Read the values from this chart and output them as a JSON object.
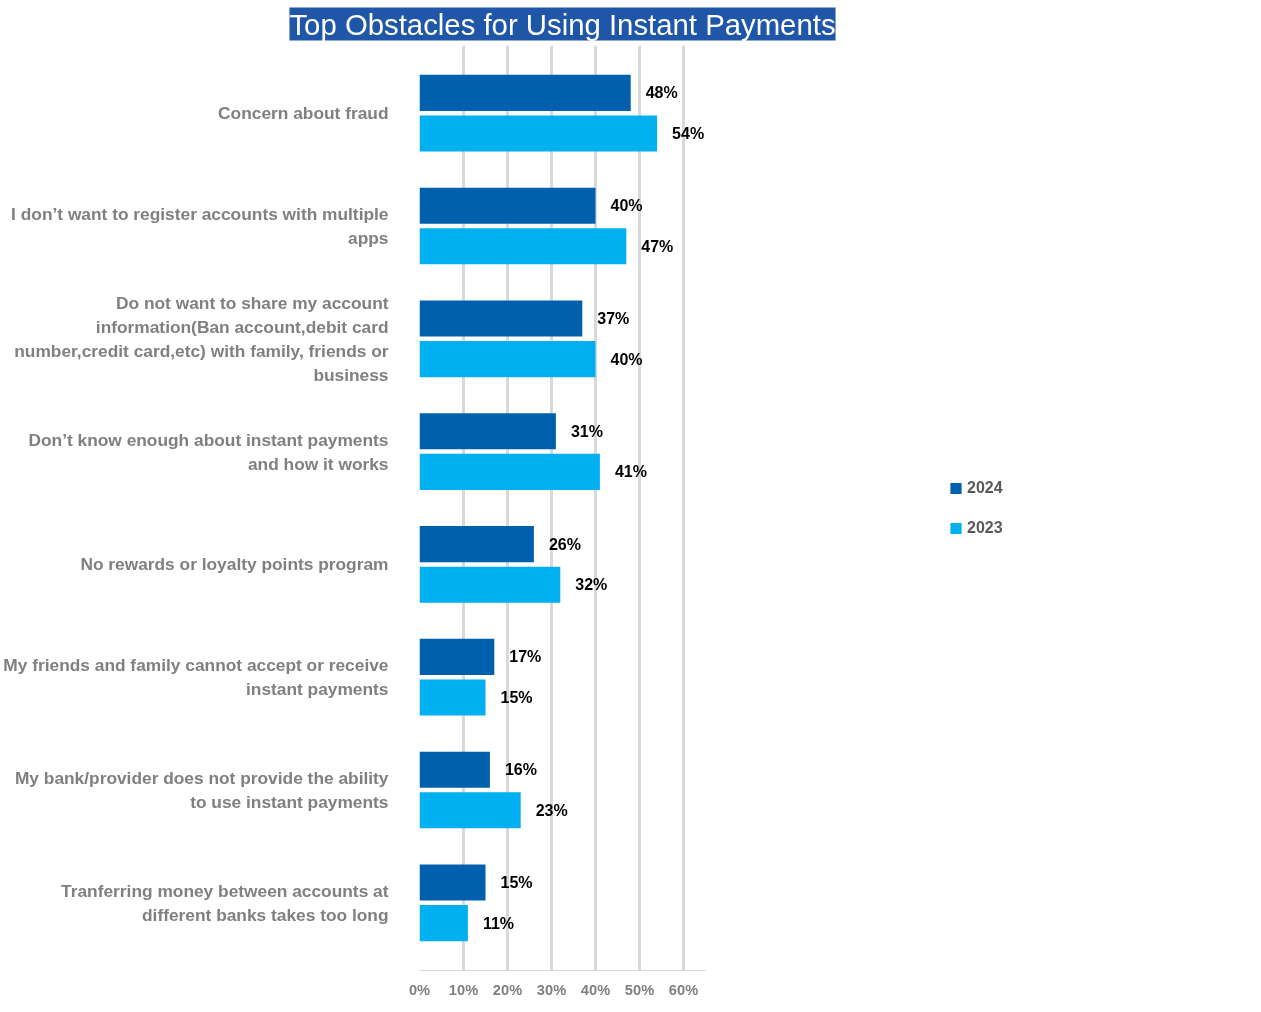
{
  "chart_data": {
    "type": "bar",
    "orientation": "horizontal",
    "title": "Top Obstacles for Using Instant Payments",
    "categories": [
      "Concern about fraud",
      "I don’t want to register accounts with multiple\napps",
      "Do not want to share my account\ninformation(Ban account,debit card\nnumber,credit card,etc) with family, friends or\nbusiness",
      "Don’t know enough about instant payments\nand how it works",
      "No rewards or loyalty points program",
      "My friends and family cannot accept or receive\ninstant payments",
      "My bank/provider does not provide the ability\nto use instant payments",
      "Tranferring money between accounts at\ndifferent banks takes too long"
    ],
    "series": [
      {
        "name": "2024",
        "color": "#0060ad",
        "values": [
          48,
          40,
          37,
          31,
          26,
          17,
          16,
          15
        ],
        "value_labels": [
          "48%",
          "40%",
          "37%",
          "31%",
          "26%",
          "17%",
          "16%",
          "15%"
        ]
      },
      {
        "name": "2023",
        "color": "#00b0f0",
        "values": [
          54,
          47,
          40,
          41,
          32,
          15,
          23,
          11
        ],
        "value_labels": [
          "54%",
          "47%",
          "40%",
          "41%",
          "32%",
          "15%",
          "23%",
          "11%"
        ]
      }
    ],
    "xlim": [
      0,
      65
    ],
    "xticks": [
      {
        "value": 0,
        "label": "0%"
      },
      {
        "value": 10,
        "label": "10%"
      },
      {
        "value": 20,
        "label": "20%"
      },
      {
        "value": 30,
        "label": "30%"
      },
      {
        "value": 40,
        "label": "40%"
      },
      {
        "value": 50,
        "label": "50%"
      },
      {
        "value": 60,
        "label": "60%"
      }
    ],
    "grid": "x",
    "legend": "right"
  }
}
